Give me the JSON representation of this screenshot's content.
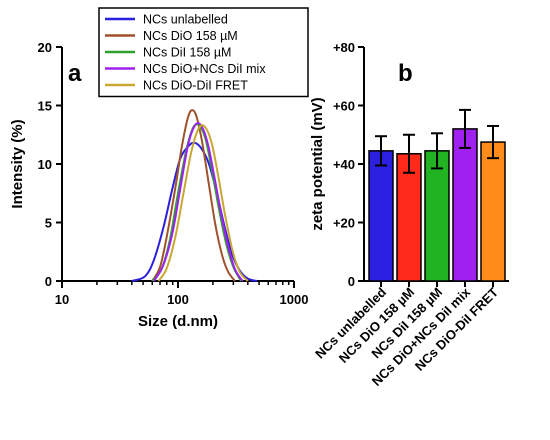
{
  "chart_data": [
    {
      "type": "line",
      "panel_label": "a",
      "xlabel": "Size (d.nm)",
      "ylabel": "Intensity (%)",
      "xscale": "log",
      "xlim": [
        10,
        1000
      ],
      "ylim": [
        0,
        20
      ],
      "x_ticks": [
        10,
        100,
        1000
      ],
      "x_tick_labels": [
        "10",
        "100",
        "1000"
      ],
      "y_ticks": [
        0,
        5,
        10,
        15,
        20
      ],
      "y_tick_labels": [
        "0",
        "5",
        "10",
        "15",
        "20"
      ],
      "legend_position": "top",
      "series": [
        {
          "name": "NCs unlabelled",
          "color": "#2b1fe0",
          "points": [
            [
              40,
              0
            ],
            [
              52,
              0.4
            ],
            [
              62,
              1.8
            ],
            [
              75,
              4.6
            ],
            [
              90,
              8.0
            ],
            [
              105,
              10.5
            ],
            [
              125,
              11.6
            ],
            [
              140,
              11.8
            ],
            [
              160,
              11.3
            ],
            [
              185,
              10.0
            ],
            [
              215,
              7.6
            ],
            [
              250,
              4.8
            ],
            [
              290,
              2.4
            ],
            [
              340,
              0.9
            ],
            [
              400,
              0.2
            ],
            [
              480,
              0
            ]
          ]
        },
        {
          "name": "NCs DiO 158 µM",
          "color": "#a0522d",
          "points": [
            [
              60,
              0
            ],
            [
              70,
              1.2
            ],
            [
              80,
              3.8
            ],
            [
              95,
              8.0
            ],
            [
              108,
              11.5
            ],
            [
              122,
              14.0
            ],
            [
              133,
              14.6
            ],
            [
              145,
              14.0
            ],
            [
              162,
              11.8
            ],
            [
              185,
              8.2
            ],
            [
              210,
              4.8
            ],
            [
              240,
              2.2
            ],
            [
              270,
              0.8
            ],
            [
              310,
              0
            ]
          ]
        },
        {
          "name": "NCs DiI 158 µM",
          "color": "#2ca02c",
          "points": [
            [
              60,
              0
            ],
            [
              72,
              1.0
            ],
            [
              85,
              3.5
            ],
            [
              100,
              7.5
            ],
            [
              118,
              11.2
            ],
            [
              135,
              13.1
            ],
            [
              152,
              13.3
            ],
            [
              172,
              12.2
            ],
            [
              195,
              9.6
            ],
            [
              225,
              6.2
            ],
            [
              260,
              3.2
            ],
            [
              300,
              1.2
            ],
            [
              350,
              0
            ]
          ]
        },
        {
          "name": "NCs DiO+NCs DiI mix",
          "color": "#a020f0",
          "points": [
            [
              62,
              0
            ],
            [
              75,
              1.4
            ],
            [
              90,
              4.2
            ],
            [
              105,
              8.0
            ],
            [
              122,
              11.6
            ],
            [
              140,
              13.3
            ],
            [
              158,
              13.3
            ],
            [
              180,
              11.8
            ],
            [
              205,
              9.0
            ],
            [
              235,
              5.8
            ],
            [
              270,
              3.0
            ],
            [
              310,
              1.0
            ],
            [
              360,
              0
            ]
          ]
        },
        {
          "name": "NCs DiO-DiI FRET",
          "color": "#c8a832",
          "points": [
            [
              68,
              0
            ],
            [
              80,
              1.1
            ],
            [
              95,
              3.8
            ],
            [
              112,
              7.6
            ],
            [
              130,
              11.0
            ],
            [
              150,
              13.0
            ],
            [
              170,
              13.2
            ],
            [
              195,
              11.8
            ],
            [
              222,
              9.0
            ],
            [
              255,
              5.6
            ],
            [
              295,
              2.6
            ],
            [
              340,
              0.8
            ],
            [
              400,
              0
            ]
          ]
        }
      ]
    },
    {
      "type": "bar",
      "panel_label": "b",
      "ylabel": "zeta potential (mV)",
      "ylim": [
        0,
        80
      ],
      "y_ticks": [
        0,
        20,
        40,
        60,
        80
      ],
      "y_tick_labels": [
        "0",
        "+20",
        "+40",
        "+60",
        "+80"
      ],
      "categories": [
        "NCs unlabelled",
        "NCs DiO 158 µM",
        "NCs DiI 158 µM",
        "NCs DiO+NCs DiI mix",
        "NCs DiO-DiI FRET"
      ],
      "values": [
        44.5,
        43.5,
        44.5,
        52,
        47.5
      ],
      "errors": [
        5,
        6.5,
        6,
        6.5,
        5.5
      ],
      "colors": [
        "#2b1fe0",
        "#ff2a1a",
        "#22b322",
        "#a020f0",
        "#ff8c1a"
      ]
    }
  ]
}
